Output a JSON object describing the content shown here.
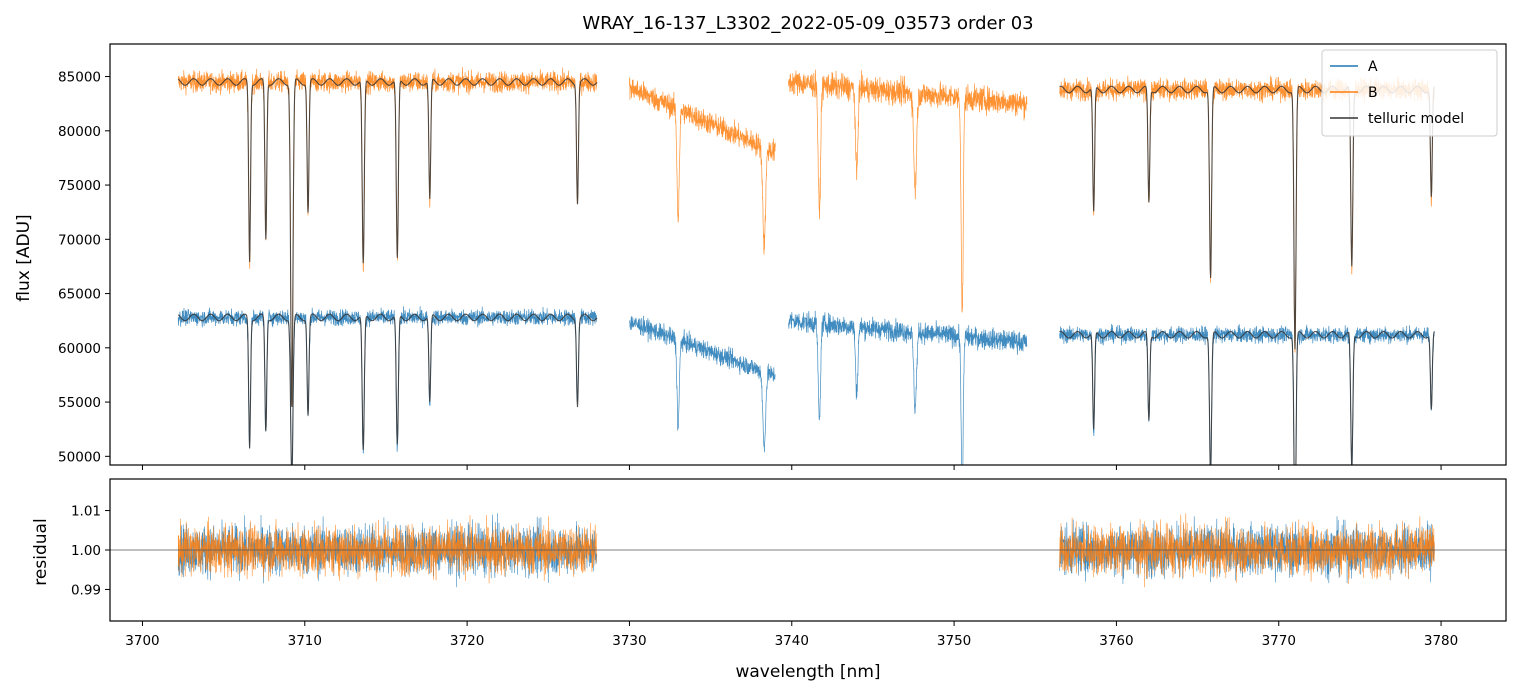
{
  "chart_data": {
    "type": "line",
    "title": "WRAY_16-137_L3302_2022-05-09_03573  order 03",
    "xlabel": "wavelength [nm]",
    "xlim": [
      3698,
      3784
    ],
    "x_ticks": [
      3700,
      3710,
      3720,
      3730,
      3740,
      3750,
      3760,
      3770,
      3780
    ],
    "legend": {
      "position": "top-right",
      "entries": [
        {
          "name": "A",
          "color": "#1f77b4"
        },
        {
          "name": "B",
          "color": "#ff7f0e"
        },
        {
          "name": "telluric model",
          "color": "#333333"
        }
      ]
    },
    "panels": [
      {
        "name": "flux",
        "ylabel": "flux [ADU]",
        "ylim": [
          49200,
          88000
        ],
        "y_ticks": [
          50000,
          55000,
          60000,
          65000,
          70000,
          75000,
          80000,
          85000
        ],
        "series": [
          {
            "name": "B",
            "color": "#ff7f0e",
            "segments": [
              {
                "x_range": [
                  3702.2,
                  3728.0
                ],
                "base": 84500,
                "noise": 900,
                "slope": 0
              },
              {
                "x_range": [
                  3730.0,
                  3739.0
                ],
                "base": 84000,
                "noise": 1000,
                "slope": -600
              },
              {
                "x_range": [
                  3739.8,
                  3754.5
                ],
                "base": 84500,
                "noise": 1100,
                "slope": -200
              },
              {
                "x_range": [
                  3756.5,
                  3779.6
                ],
                "base": 83800,
                "noise": 900,
                "slope": 0
              }
            ],
            "lines": [
              {
                "x": 3706.6,
                "depth": 16500,
                "width": 0.08
              },
              {
                "x": 3707.6,
                "depth": 14500,
                "width": 0.08
              },
              {
                "x": 3709.2,
                "depth": 30000,
                "width": 0.1
              },
              {
                "x": 3710.2,
                "depth": 12000,
                "width": 0.08
              },
              {
                "x": 3713.6,
                "depth": 17000,
                "width": 0.09
              },
              {
                "x": 3715.7,
                "depth": 16500,
                "width": 0.09
              },
              {
                "x": 3717.7,
                "depth": 11000,
                "width": 0.08
              },
              {
                "x": 3726.8,
                "depth": 11000,
                "width": 0.08
              },
              {
                "x": 3733.0,
                "depth": 10000,
                "width": 0.1
              },
              {
                "x": 3738.3,
                "depth": 9000,
                "width": 0.12
              },
              {
                "x": 3741.7,
                "depth": 12000,
                "width": 0.1
              },
              {
                "x": 3744.0,
                "depth": 8000,
                "width": 0.1
              },
              {
                "x": 3747.6,
                "depth": 9000,
                "width": 0.12
              },
              {
                "x": 3750.5,
                "depth": 20000,
                "width": 0.09
              },
              {
                "x": 3758.6,
                "depth": 11500,
                "width": 0.08
              },
              {
                "x": 3762.0,
                "depth": 10500,
                "width": 0.08
              },
              {
                "x": 3765.8,
                "depth": 17500,
                "width": 0.09
              },
              {
                "x": 3771.0,
                "depth": 24000,
                "width": 0.09
              },
              {
                "x": 3774.5,
                "depth": 16500,
                "width": 0.09
              },
              {
                "x": 3779.4,
                "depth": 10000,
                "width": 0.08
              }
            ]
          },
          {
            "name": "A",
            "color": "#1f77b4",
            "segments": [
              {
                "x_range": [
                  3702.2,
                  3728.0
                ],
                "base": 62800,
                "noise": 700,
                "slope": 0
              },
              {
                "x_range": [
                  3730.0,
                  3739.0
                ],
                "base": 62400,
                "noise": 800,
                "slope": -500
              },
              {
                "x_range": [
                  3739.8,
                  3754.5
                ],
                "base": 62500,
                "noise": 900,
                "slope": -200
              },
              {
                "x_range": [
                  3756.5,
                  3779.6
                ],
                "base": 61200,
                "noise": 700,
                "slope": 0
              }
            ],
            "lines": [
              {
                "x": 3706.6,
                "depth": 12000,
                "width": 0.08
              },
              {
                "x": 3707.6,
                "depth": 10500,
                "width": 0.08
              },
              {
                "x": 3709.2,
                "depth": 15000,
                "width": 0.1
              },
              {
                "x": 3710.2,
                "depth": 9000,
                "width": 0.08
              },
              {
                "x": 3713.6,
                "depth": 12500,
                "width": 0.09
              },
              {
                "x": 3715.7,
                "depth": 12000,
                "width": 0.09
              },
              {
                "x": 3717.7,
                "depth": 8000,
                "width": 0.08
              },
              {
                "x": 3726.8,
                "depth": 8000,
                "width": 0.08
              },
              {
                "x": 3733.0,
                "depth": 8000,
                "width": 0.1
              },
              {
                "x": 3738.3,
                "depth": 7000,
                "width": 0.12
              },
              {
                "x": 3741.7,
                "depth": 9000,
                "width": 0.1
              },
              {
                "x": 3744.0,
                "depth": 6000,
                "width": 0.1
              },
              {
                "x": 3747.6,
                "depth": 7000,
                "width": 0.12
              },
              {
                "x": 3750.5,
                "depth": 14000,
                "width": 0.09
              },
              {
                "x": 3758.6,
                "depth": 9000,
                "width": 0.08
              },
              {
                "x": 3762.0,
                "depth": 8000,
                "width": 0.08
              },
              {
                "x": 3765.8,
                "depth": 13000,
                "width": 0.09
              },
              {
                "x": 3771.0,
                "depth": 18000,
                "width": 0.09
              },
              {
                "x": 3774.5,
                "depth": 12500,
                "width": 0.09
              },
              {
                "x": 3779.4,
                "depth": 7000,
                "width": 0.08
              }
            ]
          }
        ],
        "models": [
          {
            "name": "telluric model",
            "color": "#333333",
            "follows": "B",
            "ranges": [
              [
                3702.2,
                3728.0
              ],
              [
                3756.5,
                3779.6
              ]
            ]
          },
          {
            "name": "telluric model",
            "color": "#333333",
            "follows": "A",
            "ranges": [
              [
                3702.2,
                3728.0
              ],
              [
                3756.5,
                3779.6
              ]
            ]
          }
        ]
      },
      {
        "name": "residual",
        "ylabel": "residual",
        "ylim": [
          0.982,
          1.018
        ],
        "y_ticks": [
          0.99,
          1.0,
          1.01
        ],
        "y_tick_labels": [
          "0.99",
          "1.00",
          "1.01"
        ],
        "reference_line": 1.0,
        "series": [
          {
            "name": "A",
            "color": "#1f77b4",
            "ranges": [
              [
                3702.2,
                3728.0
              ],
              [
                3756.5,
                3779.6
              ]
            ],
            "center": 1.0,
            "noise": 0.006
          },
          {
            "name": "B",
            "color": "#ff7f0e",
            "ranges": [
              [
                3702.2,
                3728.0
              ],
              [
                3756.5,
                3779.6
              ]
            ],
            "center": 1.0,
            "noise": 0.006
          }
        ]
      }
    ]
  }
}
